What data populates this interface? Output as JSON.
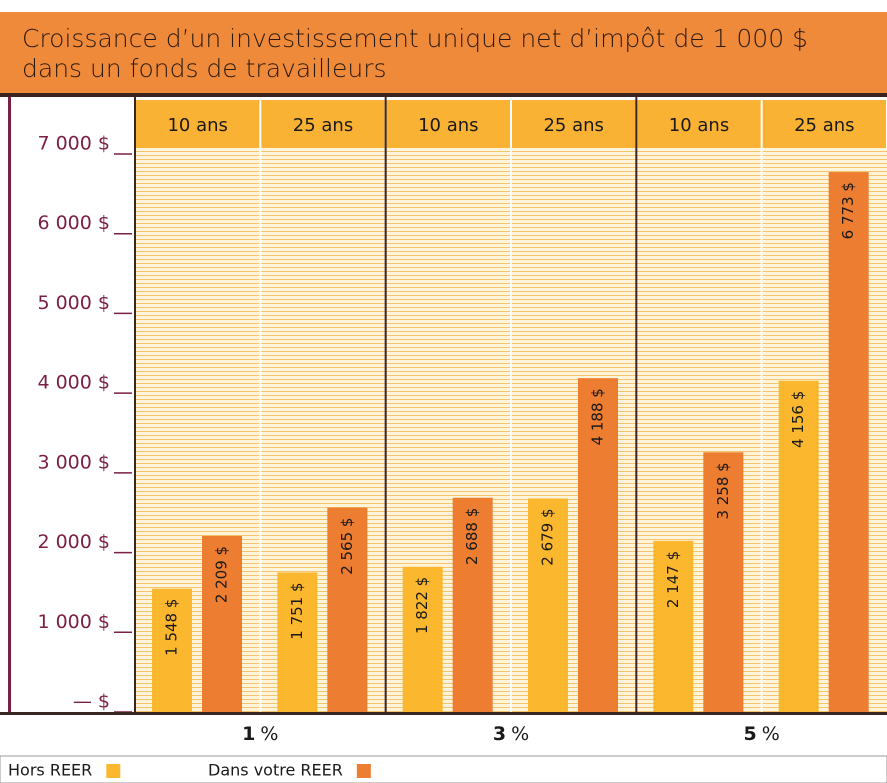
{
  "chart_data": {
    "type": "bar",
    "title": "Croissance d’un investissement unique net d’impôt de 1 000 $ dans un fonds de travailleurs",
    "categories": [
      "10 ans",
      "25 ans",
      "10 ans",
      "25 ans",
      "10 ans",
      "25 ans"
    ],
    "groups": [
      "1",
      "3",
      "5"
    ],
    "group_unit": "%",
    "series": [
      {
        "name": "Hors REER",
        "color": "#fbb72d",
        "values": [
          1548,
          1751,
          1822,
          2679,
          2147,
          4156
        ],
        "value_labels": [
          "1 548 $",
          "1 751 $",
          "1 822 $",
          "2 679 $",
          "2 147 $",
          "4 156 $"
        ]
      },
      {
        "name": "Dans votre REER",
        "color": "#ec7d31",
        "values": [
          2209,
          2565,
          2688,
          4188,
          3258,
          6773
        ],
        "value_labels": [
          "2 209 $",
          "2 565 $",
          "2 688 $",
          "4 188 $",
          "3 258 $",
          "6 773 $"
        ]
      }
    ],
    "ylim": [
      0,
      7000
    ],
    "yticks": [
      {
        "value": 0,
        "label": "— $"
      },
      {
        "value": 1000,
        "label": "1 000 $"
      },
      {
        "value": 2000,
        "label": "2 000 $"
      },
      {
        "value": 3000,
        "label": "3 000 $"
      },
      {
        "value": 4000,
        "label": "4 000 $"
      },
      {
        "value": 5000,
        "label": "5 000 $"
      },
      {
        "value": 6000,
        "label": "6 000 $"
      },
      {
        "value": 7000,
        "label": "7 000 $"
      }
    ],
    "grid": true
  }
}
